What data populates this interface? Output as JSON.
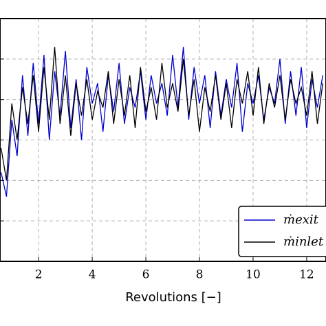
{
  "chart_data": {
    "type": "line",
    "x_label": "Revolutions [−]",
    "x": [
      0.6,
      0.8,
      1.0,
      1.2,
      1.4,
      1.6,
      1.8,
      2.0,
      2.2,
      2.4,
      2.6,
      2.8,
      3.0,
      3.2,
      3.4,
      3.6,
      3.8,
      4.0,
      4.2,
      4.4,
      4.6,
      4.8,
      5.0,
      5.2,
      5.4,
      5.6,
      5.8,
      6.0,
      6.2,
      6.4,
      6.6,
      6.8,
      7.0,
      7.2,
      7.4,
      7.6,
      7.8,
      8.0,
      8.2,
      8.4,
      8.6,
      8.8,
      9.0,
      9.2,
      9.4,
      9.6,
      9.8,
      10.0,
      10.2,
      10.4,
      10.6,
      10.8,
      11.0,
      11.2,
      11.4,
      11.6,
      11.8,
      12.0,
      12.2,
      12.4,
      12.6
    ],
    "series": [
      {
        "name": "ṁexit",
        "color": "#0000cc",
        "values": [
          2.2,
          1.6,
          3.5,
          2.6,
          4.6,
          3.1,
          4.9,
          3.4,
          5.1,
          3.0,
          4.7,
          3.6,
          5.2,
          3.3,
          4.5,
          3.0,
          4.8,
          3.9,
          4.4,
          3.2,
          4.6,
          3.7,
          4.9,
          3.4,
          4.3,
          3.8,
          4.7,
          3.5,
          4.6,
          3.9,
          4.4,
          3.6,
          5.1,
          3.8,
          5.3,
          3.5,
          4.8,
          3.9,
          4.6,
          3.3,
          4.7,
          3.6,
          4.5,
          3.8,
          4.9,
          3.2,
          4.4,
          3.9,
          4.6,
          3.5,
          4.3,
          3.9,
          5.0,
          3.4,
          4.7,
          3.6,
          4.8,
          3.3,
          4.5,
          3.8,
          4.6
        ]
      },
      {
        "name": "ṁinlet",
        "color": "#000000",
        "values": [
          2.8,
          2.0,
          3.9,
          3.0,
          4.3,
          3.4,
          4.6,
          3.2,
          4.8,
          3.5,
          5.3,
          3.4,
          4.6,
          3.1,
          4.4,
          3.6,
          4.5,
          3.5,
          4.2,
          3.8,
          4.7,
          3.4,
          4.5,
          3.6,
          4.6,
          3.3,
          4.8,
          3.7,
          4.3,
          3.5,
          4.9,
          3.8,
          4.4,
          3.7,
          5.0,
          3.6,
          4.5,
          3.2,
          4.3,
          3.7,
          4.6,
          3.5,
          4.4,
          3.3,
          4.5,
          3.9,
          4.7,
          3.6,
          4.8,
          3.4,
          4.4,
          3.8,
          4.6,
          3.5,
          4.5,
          3.9,
          4.3,
          3.6,
          4.7,
          3.4,
          4.4
        ]
      }
    ],
    "xlim": [
      0.56,
      12.72
    ],
    "xticks": [
      2,
      4,
      6,
      8,
      10,
      12
    ],
    "ylim": [
      0,
      6
    ],
    "yticks": [
      1,
      2,
      3,
      4,
      5
    ],
    "grid": true
  }
}
